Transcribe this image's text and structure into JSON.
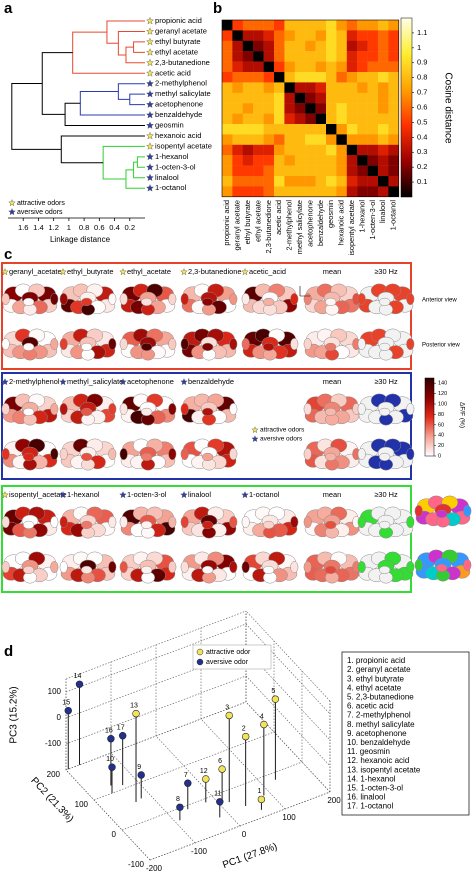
{
  "chart_data": [
    {
      "panel": "a",
      "type": "dendrogram",
      "labels": [
        "propionic acid",
        "geranyl acetate",
        "ethyl butyrate",
        "ethyl acetate",
        "2,3-butanedione",
        "acetic acid",
        "2-methylphenol",
        "methyl salicylate",
        "acetophenone",
        "benzaldehyde",
        "geosmin",
        "hexanoic acid",
        "isopentyl acetate",
        "1-hexanol",
        "1-octen-3-ol",
        "linalool",
        "1-octanol"
      ],
      "leaf_colors": [
        "#f2e35a",
        "#f2e35a",
        "#f2e35a",
        "#f2e35a",
        "#f2e35a",
        "#f2e35a",
        "#3340a0",
        "#3340a0",
        "#3340a0",
        "#3340a0",
        "#3340a0",
        "#f2e35a",
        "#f2e35a",
        "#3340a0",
        "#3340a0",
        "#3340a0",
        "#3340a0"
      ],
      "links": [
        {
          "a": 2,
          "b": 3,
          "height": 0.15,
          "color": "#e8482f"
        },
        {
          "a": 17,
          "b": 4,
          "height": 0.25,
          "color": "#e8482f"
        },
        {
          "a": 1,
          "b": 18,
          "height": 0.35,
          "color": "#e8482f"
        },
        {
          "a": 0,
          "b": 19,
          "height": 0.5,
          "color": "#e8482f"
        },
        {
          "a": 20,
          "b": 5,
          "height": 0.95,
          "color": "#e8482f"
        },
        {
          "a": 7,
          "b": 8,
          "height": 0.2,
          "color": "#2a3bb0"
        },
        {
          "a": 6,
          "b": 22,
          "height": 0.35,
          "color": "#2a3bb0"
        },
        {
          "a": 23,
          "b": 9,
          "height": 0.85,
          "color": "#2a3bb0"
        },
        {
          "a": 24,
          "b": 10,
          "height": 1.05,
          "color": "#000000"
        },
        {
          "a": 21,
          "b": 25,
          "height": 1.35,
          "color": "#000000"
        },
        {
          "a": 13,
          "b": 14,
          "height": 0.1,
          "color": "#2fd02f"
        },
        {
          "a": 27,
          "b": 15,
          "height": 0.15,
          "color": "#2fd02f"
        },
        {
          "a": 28,
          "b": 16,
          "height": 0.25,
          "color": "#2fd02f"
        },
        {
          "a": 12,
          "b": 29,
          "height": 0.55,
          "color": "#2fd02f"
        },
        {
          "a": 30,
          "b": 11,
          "height": 1.1,
          "color": "#000000"
        },
        {
          "a": 26,
          "b": 31,
          "height": 1.75,
          "color": "#000000"
        }
      ],
      "legend": [
        {
          "name": "attractive odors",
          "color": "#f2e35a"
        },
        {
          "name": "aversive odors",
          "color": "#3340a0"
        }
      ],
      "xlim": [
        1.8,
        0
      ],
      "xticks": [
        1.6,
        1.4,
        1.2,
        1,
        0.8,
        0.6,
        0.4,
        0.2
      ],
      "xlabel": "Linkage distance"
    },
    {
      "panel": "b",
      "type": "heatmap",
      "matrix": [
        [
          0,
          0.5,
          0.6,
          0.6,
          0.6,
          0.5,
          0.8,
          0.8,
          0.8,
          0.8,
          0.9,
          0.7,
          0.6,
          0.7,
          0.7,
          0.8,
          0.7
        ],
        [
          0.5,
          0,
          0.3,
          0.3,
          0.4,
          0.6,
          0.7,
          0.8,
          0.8,
          0.7,
          0.9,
          0.8,
          0.4,
          0.5,
          0.5,
          0.6,
          0.5
        ],
        [
          0.6,
          0.3,
          0,
          0.2,
          0.3,
          0.6,
          0.8,
          0.8,
          0.7,
          0.8,
          0.9,
          0.8,
          0.3,
          0.4,
          0.5,
          0.6,
          0.5
        ],
        [
          0.6,
          0.3,
          0.2,
          0,
          0.3,
          0.6,
          0.8,
          0.8,
          0.8,
          0.8,
          0.9,
          0.8,
          0.4,
          0.5,
          0.5,
          0.6,
          0.5
        ],
        [
          0.6,
          0.4,
          0.3,
          0.3,
          0,
          0.5,
          0.7,
          0.8,
          0.8,
          0.7,
          0.8,
          0.7,
          0.4,
          0.5,
          0.6,
          0.6,
          0.6
        ],
        [
          0.5,
          0.6,
          0.6,
          0.6,
          0.5,
          0,
          0.8,
          0.9,
          0.9,
          0.9,
          0.8,
          0.6,
          0.7,
          0.8,
          0.8,
          0.9,
          0.8
        ],
        [
          0.8,
          0.7,
          0.8,
          0.8,
          0.7,
          0.8,
          0,
          0.3,
          0.3,
          0.4,
          0.8,
          0.8,
          0.8,
          0.7,
          0.8,
          0.7,
          0.8
        ],
        [
          0.8,
          0.8,
          0.8,
          0.8,
          0.8,
          0.9,
          0.3,
          0,
          0.2,
          0.3,
          0.8,
          0.8,
          0.8,
          0.8,
          0.8,
          0.7,
          0.8
        ],
        [
          0.8,
          0.8,
          0.7,
          0.8,
          0.8,
          0.9,
          0.3,
          0.2,
          0,
          0.2,
          0.8,
          0.9,
          0.8,
          0.8,
          0.8,
          0.7,
          0.8
        ],
        [
          0.8,
          0.7,
          0.8,
          0.8,
          0.7,
          0.9,
          0.4,
          0.3,
          0.2,
          0,
          0.8,
          0.9,
          0.8,
          0.8,
          0.8,
          0.8,
          0.8
        ],
        [
          0.9,
          0.9,
          0.9,
          0.9,
          0.8,
          0.8,
          0.8,
          0.8,
          0.8,
          0.8,
          0,
          0.7,
          0.9,
          0.8,
          0.8,
          0.9,
          0.8
        ],
        [
          0.7,
          0.8,
          0.8,
          0.8,
          0.7,
          0.6,
          0.8,
          0.8,
          0.9,
          0.9,
          0.7,
          0,
          0.7,
          0.7,
          0.7,
          0.8,
          0.7
        ],
        [
          0.6,
          0.4,
          0.3,
          0.4,
          0.4,
          0.7,
          0.8,
          0.8,
          0.8,
          0.8,
          0.9,
          0.7,
          0,
          0.3,
          0.3,
          0.4,
          0.3
        ],
        [
          0.7,
          0.5,
          0.4,
          0.5,
          0.5,
          0.8,
          0.7,
          0.8,
          0.8,
          0.8,
          0.8,
          0.7,
          0.3,
          0,
          0.2,
          0.3,
          0.2
        ],
        [
          0.7,
          0.5,
          0.5,
          0.5,
          0.6,
          0.8,
          0.8,
          0.8,
          0.8,
          0.8,
          0.8,
          0.7,
          0.3,
          0.2,
          0,
          0.3,
          0.2
        ],
        [
          0.8,
          0.6,
          0.6,
          0.6,
          0.6,
          0.9,
          0.7,
          0.7,
          0.7,
          0.8,
          0.9,
          0.8,
          0.4,
          0.3,
          0.3,
          0,
          0.3
        ],
        [
          0.7,
          0.5,
          0.5,
          0.5,
          0.6,
          0.8,
          0.8,
          0.8,
          0.8,
          0.8,
          0.8,
          0.7,
          0.3,
          0.2,
          0.2,
          0.3,
          0
        ]
      ],
      "clim": [
        0,
        1.2
      ],
      "colormap": [
        "#000000",
        "#9a0000",
        "#ff3000",
        "#ffa000",
        "#ffee30",
        "#ffffe8"
      ],
      "cticks": [
        0.1,
        0.2,
        0.3,
        0.4,
        0.5,
        0.6,
        0.7,
        0.8,
        0.9,
        1,
        1.1
      ],
      "clabel": "Cosine distance"
    },
    {
      "panel": "c",
      "type": "brain-maps",
      "rows": [
        {
          "color": "#e8432a",
          "columns": [
            {
              "name": "geranyl_acetate",
              "star": "#f2e35a"
            },
            {
              "name": "ethyl_butyrate",
              "star": "#f2e35a"
            },
            {
              "name": "ethyl_acetate",
              "star": "#f2e35a"
            },
            {
              "name": "2,3-butanedione",
              "star": "#f2e35a"
            },
            {
              "name": "acetic_acid",
              "star": "#f2e35a"
            },
            {
              "name": "mean"
            },
            {
              "name": "≥30 Hz"
            }
          ]
        },
        {
          "color": "#2233aa",
          "columns": [
            {
              "name": "2-methylphenol",
              "star": "#3340a0"
            },
            {
              "name": "methyl_salicylate",
              "star": "#3340a0"
            },
            {
              "name": "acetophenone",
              "star": "#3340a0"
            },
            {
              "name": "benzaldehyde",
              "star": "#3340a0"
            },
            {
              "name": "mean"
            },
            {
              "name": "≥30 Hz"
            }
          ]
        },
        {
          "color": "#33dd33",
          "columns": [
            {
              "name": "isopentyl_acetate",
              "star": "#f2e35a"
            },
            {
              "name": "1-hexanol",
              "star": "#3340a0"
            },
            {
              "name": "1-octen-3-ol",
              "star": "#3340a0"
            },
            {
              "name": "linalool",
              "star": "#3340a0"
            },
            {
              "name": "1-octanol",
              "star": "#3340a0"
            },
            {
              "name": "mean"
            },
            {
              "name": "≥30 Hz"
            }
          ]
        }
      ],
      "view_labels": [
        "Anterior view",
        "Posterior view"
      ],
      "legend": [
        {
          "name": "attractive odors",
          "color": "#f2e35a"
        },
        {
          "name": "aversive odors",
          "color": "#3340a0"
        }
      ],
      "colorbar": {
        "ylim": [
          0,
          150
        ],
        "ticks": [
          0,
          20,
          40,
          60,
          80,
          100,
          120,
          140
        ],
        "label": "ΔF/F (%)",
        "colormap": [
          "#ffffff",
          "#f4a090",
          "#e02a1a",
          "#8a0000",
          "#300000"
        ]
      }
    },
    {
      "panel": "d",
      "type": "scatter3d",
      "series": [
        {
          "name": "attractive odor",
          "color": "#f2e35a",
          "labels": [
            "1",
            "2",
            "3",
            "4",
            "5",
            "6",
            "12",
            "13"
          ],
          "x": [
            60,
            40,
            19,
            86,
            129,
            10,
            -20,
            -134
          ],
          "y": [
            -80,
            -56,
            -31,
            -47,
            -19,
            -20,
            -10,
            56
          ],
          "z": [
            -160,
            67,
            133,
            73,
            110,
            -80,
            -110,
            140
          ]
        },
        {
          "name": "aversive odor",
          "color": "#23308f",
          "labels": [
            "7",
            "8",
            "9",
            "10",
            "11",
            "14",
            "15",
            "16",
            "17"
          ],
          "x": [
            -60,
            -90,
            -120,
            -160,
            -20,
            -170,
            -195,
            -150,
            -130
          ],
          "y": [
            -10,
            -30,
            60,
            100,
            -60,
            200,
            200,
            120,
            110
          ],
          "z": [
            -100,
            -150,
            -110,
            -100,
            -140,
            110,
            25,
            -20,
            -10
          ]
        }
      ],
      "xlabel": "PC1 (27.8%)",
      "ylabel": "PC2 (21.3%)",
      "zlabel": "PC3 (15.2%)",
      "xlim": [
        -200,
        200
      ],
      "ylim": [
        -100,
        200
      ],
      "zlim": [
        -200,
        150
      ],
      "xticks": [
        -200,
        -100,
        0,
        100,
        200
      ],
      "yticks": [
        -100,
        0,
        100,
        200
      ],
      "zticks": [
        -100,
        0,
        100
      ],
      "key": [
        "1. propionic acid",
        "2. geranyl acetate",
        "3. ethyl butyrate",
        "4. ethyl acetate",
        "5. 2,3-butanedione",
        "6. acetic acid",
        "7. 2-methylphenol",
        "8. methyl salicylate",
        "9. acetophenone",
        "10. benzaldehyde",
        "11. geosmin",
        "12. hexanoic acid",
        "13. isopentyl acetate",
        "14. 1-hexanol",
        "15. 1-octen-3-ol",
        "16. linalool",
        "17. 1-octanol"
      ]
    }
  ]
}
